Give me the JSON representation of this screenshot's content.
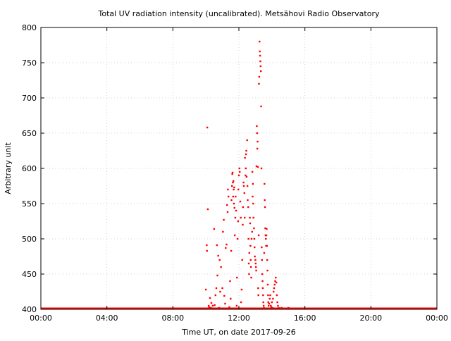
{
  "chart_data": {
    "type": "scatter",
    "title": "Total UV radiation intensity (uncalibrated). Metsähovi Radio Observatory",
    "xlabel": "Time UT, on date 2017-09-26",
    "ylabel": "Arbitrary unit",
    "xlim": [
      "00:00",
      "24:00"
    ],
    "ylim": [
      400,
      800
    ],
    "grid": true,
    "x_tick_labels": [
      "00:00",
      "04:00",
      "08:00",
      "12:00",
      "16:00",
      "20:00",
      "00:00"
    ],
    "y_tick_labels": [
      "400",
      "450",
      "500",
      "550",
      "600",
      "650",
      "700",
      "750",
      "800"
    ],
    "point_color": "#ff0000",
    "baseline": {
      "from": "00:00",
      "to": "24:00",
      "value": 401
    },
    "series": [
      {
        "points": [
          [
            "10:00",
            428
          ],
          [
            "10:03",
            491
          ],
          [
            "10:04",
            483
          ],
          [
            "10:05",
            658
          ],
          [
            "10:07",
            542
          ],
          [
            "10:10",
            405
          ],
          [
            "10:12",
            403
          ],
          [
            "10:15",
            416
          ],
          [
            "10:18",
            402
          ],
          [
            "10:20",
            409
          ],
          [
            "10:25",
            405
          ],
          [
            "10:30",
            514
          ],
          [
            "10:32",
            406
          ],
          [
            "10:35",
            420
          ],
          [
            "10:38",
            430
          ],
          [
            "10:40",
            491
          ],
          [
            "10:42",
            448
          ],
          [
            "10:45",
            476
          ],
          [
            "10:48",
            402
          ],
          [
            "10:50",
            470
          ],
          [
            "10:52",
            425
          ],
          [
            "10:55",
            460
          ],
          [
            "10:58",
            401
          ],
          [
            "11:00",
            430
          ],
          [
            "11:02",
            510
          ],
          [
            "11:05",
            527
          ],
          [
            "11:07",
            419
          ],
          [
            "11:10",
            408
          ],
          [
            "11:12",
            487
          ],
          [
            "11:15",
            492
          ],
          [
            "11:17",
            548
          ],
          [
            "11:19",
            538
          ],
          [
            "11:20",
            570
          ],
          [
            "11:22",
            560
          ],
          [
            "11:25",
            403
          ],
          [
            "11:28",
            440
          ],
          [
            "11:30",
            415
          ],
          [
            "11:32",
            483
          ],
          [
            "11:33",
            555
          ],
          [
            "11:35",
            575
          ],
          [
            "11:36",
            592
          ],
          [
            "11:37",
            594
          ],
          [
            "11:38",
            580
          ],
          [
            "11:39",
            560
          ],
          [
            "11:40",
            582
          ],
          [
            "11:41",
            570
          ],
          [
            "11:42",
            550
          ],
          [
            "11:43",
            573
          ],
          [
            "11:44",
            544
          ],
          [
            "11:45",
            505
          ],
          [
            "11:47",
            530
          ],
          [
            "11:48",
            560
          ],
          [
            "11:50",
            540
          ],
          [
            "11:52",
            405
          ],
          [
            "11:53",
            445
          ],
          [
            "11:55",
            500
          ],
          [
            "11:57",
            525
          ],
          [
            "11:58",
            570
          ],
          [
            "12:00",
            590
          ],
          [
            "12:02",
            600
          ],
          [
            "12:03",
            595
          ],
          [
            "12:05",
            553
          ],
          [
            "12:07",
            530
          ],
          [
            "12:08",
            410
          ],
          [
            "12:10",
            428
          ],
          [
            "12:12",
            470
          ],
          [
            "12:14",
            520
          ],
          [
            "12:15",
            545
          ],
          [
            "12:17",
            580
          ],
          [
            "12:18",
            575
          ],
          [
            "12:20",
            565
          ],
          [
            "12:21",
            530
          ],
          [
            "12:22",
            615
          ],
          [
            "12:24",
            590
          ],
          [
            "12:25",
            600
          ],
          [
            "12:26",
            620
          ],
          [
            "12:27",
            625
          ],
          [
            "12:28",
            588
          ],
          [
            "12:30",
            640
          ],
          [
            "12:31",
            575
          ],
          [
            "12:32",
            555
          ],
          [
            "12:34",
            545
          ],
          [
            "12:35",
            500
          ],
          [
            "12:36",
            465
          ],
          [
            "12:37",
            450
          ],
          [
            "12:38",
            480
          ],
          [
            "12:40",
            530
          ],
          [
            "12:41",
            522
          ],
          [
            "12:42",
            490
          ],
          [
            "12:43",
            470
          ],
          [
            "12:44",
            460
          ],
          [
            "12:45",
            445
          ],
          [
            "12:46",
            500
          ],
          [
            "12:48",
            510
          ],
          [
            "12:49",
            595
          ],
          [
            "12:50",
            560
          ],
          [
            "12:51",
            578
          ],
          [
            "12:52",
            550
          ],
          [
            "12:53",
            530
          ],
          [
            "12:55",
            515
          ],
          [
            "12:56",
            500
          ],
          [
            "12:57",
            488
          ],
          [
            "12:58",
            475
          ],
          [
            "13:00",
            470
          ],
          [
            "13:01",
            465
          ],
          [
            "13:02",
            460
          ],
          [
            "13:03",
            455
          ],
          [
            "13:04",
            603
          ],
          [
            "13:05",
            660
          ],
          [
            "13:06",
            650
          ],
          [
            "13:07",
            628
          ],
          [
            "13:08",
            638
          ],
          [
            "13:09",
            602
          ],
          [
            "13:10",
            430
          ],
          [
            "13:11",
            420
          ],
          [
            "13:12",
            505
          ],
          [
            "13:13",
            720
          ],
          [
            "13:14",
            730
          ],
          [
            "13:15",
            780
          ],
          [
            "13:16",
            766
          ],
          [
            "13:17",
            760
          ],
          [
            "13:18",
            752
          ],
          [
            "13:19",
            745
          ],
          [
            "13:20",
            738
          ],
          [
            "13:21",
            688
          ],
          [
            "13:22",
            600
          ],
          [
            "13:23",
            488
          ],
          [
            "13:24",
            470
          ],
          [
            "13:25",
            450
          ],
          [
            "13:26",
            440
          ],
          [
            "13:27",
            430
          ],
          [
            "13:28",
            420
          ],
          [
            "13:29",
            410
          ],
          [
            "13:30",
            405
          ],
          [
            "13:31",
            402
          ],
          [
            "13:32",
            480
          ],
          [
            "13:33",
            578
          ],
          [
            "13:34",
            555
          ],
          [
            "13:35",
            545
          ],
          [
            "13:36",
            515
          ],
          [
            "13:37",
            505
          ],
          [
            "13:38",
            500
          ],
          [
            "13:39",
            490
          ],
          [
            "13:40",
            505
          ],
          [
            "13:41",
            514
          ],
          [
            "13:42",
            490
          ],
          [
            "13:43",
            470
          ],
          [
            "13:44",
            455
          ],
          [
            "13:45",
            435
          ],
          [
            "13:46",
            420
          ],
          [
            "13:47",
            410
          ],
          [
            "13:48",
            405
          ],
          [
            "13:50",
            408
          ],
          [
            "13:52",
            415
          ],
          [
            "13:54",
            420
          ],
          [
            "13:56",
            405
          ],
          [
            "13:58",
            403
          ],
          [
            "14:00",
            410
          ],
          [
            "14:02",
            402
          ],
          [
            "14:04",
            415
          ],
          [
            "14:06",
            425
          ],
          [
            "14:08",
            430
          ],
          [
            "14:10",
            435
          ],
          [
            "14:12",
            440
          ],
          [
            "14:14",
            445
          ],
          [
            "14:16",
            438
          ],
          [
            "14:18",
            420
          ],
          [
            "14:20",
            410
          ],
          [
            "14:22",
            405
          ],
          [
            "14:25",
            402
          ],
          [
            "14:30",
            401
          ],
          [
            "14:35",
            402
          ],
          [
            "14:45",
            401
          ],
          [
            "15:00",
            402
          ],
          [
            "15:20",
            401
          ]
        ]
      }
    ]
  }
}
